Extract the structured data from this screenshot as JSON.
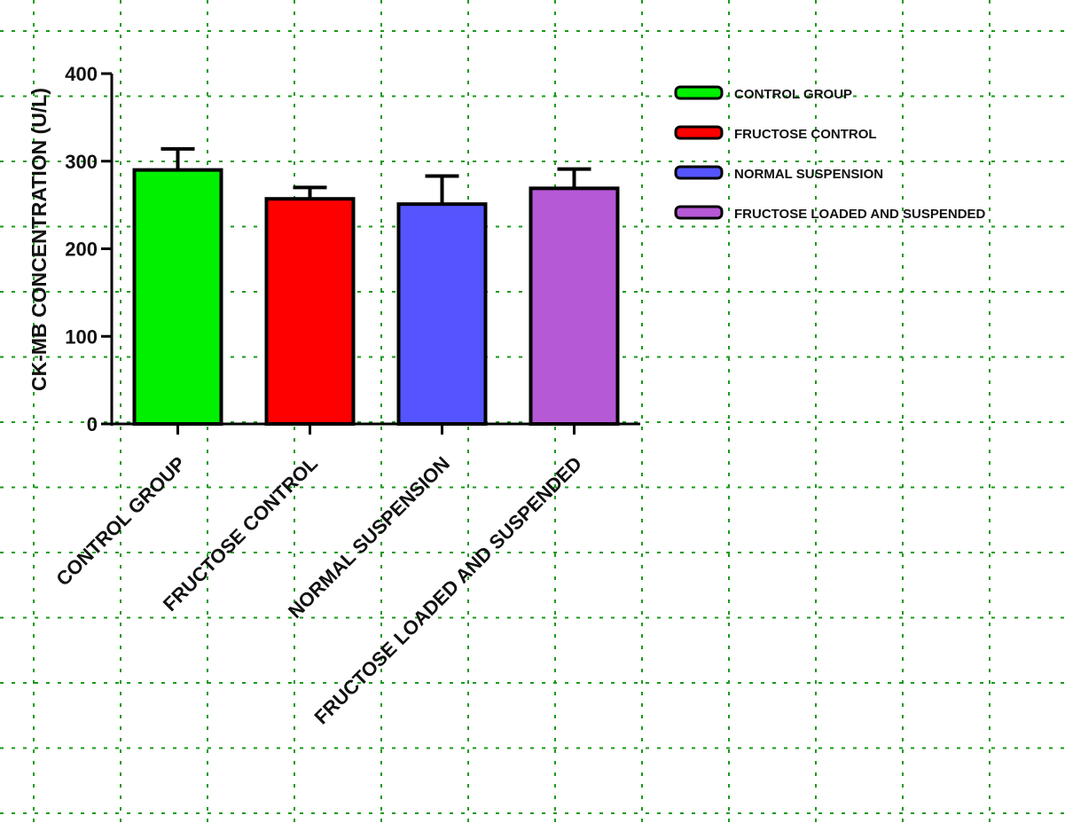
{
  "chart_data": {
    "type": "bar",
    "ylabel": "CK-MB CONCENTRATION (U/L)",
    "xlabel": "",
    "ylim": [
      0,
      400
    ],
    "yticks": [
      0,
      100,
      200,
      300,
      400
    ],
    "grid": true,
    "legend_position": "right",
    "categories": [
      "CONTROL GROUP",
      "FRUCTOSE CONTROL",
      "NORMAL SUSPENSION",
      "FRUCTOSE LOADED AND SUSPENDED"
    ],
    "values": [
      290,
      257,
      251,
      269
    ],
    "error": [
      24,
      13,
      32,
      22
    ],
    "colors": [
      "#00f000",
      "#ff0000",
      "#5555ff",
      "#b659d6"
    ],
    "legend": [
      "CONTROL GROUP",
      "FRUCTOSE CONTROL",
      "NORMAL SUSPENSION",
      "FRUCTOSE LOADED AND SUSPENDED"
    ],
    "grid_color": "#1a9a1a"
  }
}
